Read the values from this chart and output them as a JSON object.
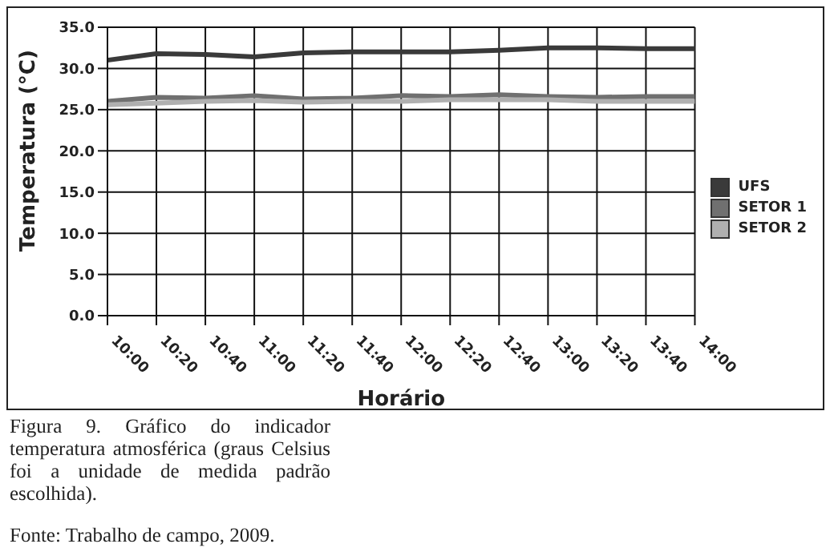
{
  "chart_data": {
    "type": "line",
    "xlabel": "Horário",
    "ylabel": "Temperatura (°C)",
    "categories": [
      "10:00",
      "10:20",
      "10:40",
      "11:00",
      "11:20",
      "11:40",
      "12:00",
      "12:20",
      "12:40",
      "13:00",
      "13:20",
      "13:40",
      "14:00"
    ],
    "series": [
      {
        "name": "UFS",
        "color": "#3a3a3a",
        "values": [
          31.0,
          31.8,
          31.7,
          31.4,
          31.9,
          32.0,
          32.0,
          32.0,
          32.2,
          32.5,
          32.5,
          32.4,
          32.4
        ]
      },
      {
        "name": "SETOR 1",
        "color": "#707070",
        "values": [
          26.0,
          26.5,
          26.4,
          26.7,
          26.3,
          26.4,
          26.7,
          26.6,
          26.8,
          26.6,
          26.5,
          26.6,
          26.6
        ]
      },
      {
        "name": "SETOR 2",
        "color": "#b0b0b0",
        "values": [
          25.6,
          25.8,
          26.0,
          26.1,
          25.9,
          26.0,
          26.0,
          26.2,
          26.2,
          26.2,
          26.0,
          26.0,
          26.0
        ]
      }
    ],
    "ylim": [
      0,
      35
    ],
    "yticks": [
      {
        "value": 0,
        "label": "0.0"
      },
      {
        "value": 5,
        "label": "5.0"
      },
      {
        "value": 10,
        "label": "10.0"
      },
      {
        "value": 15,
        "label": "15.0"
      },
      {
        "value": 20,
        "label": "20.0"
      },
      {
        "value": 25,
        "label": "25.0"
      },
      {
        "value": 30,
        "label": "30.0"
      },
      {
        "value": 35,
        "label": "35.0"
      }
    ],
    "grid": true,
    "legend": "right",
    "marker": "none",
    "line_style": "solid",
    "annotations": [
      "Figura 9. Gráfico do indicador temperatura atmosférica (graus Celsius foi a unidade de medida padrão escolhida).",
      "Fonte: Trabalho de campo, 2009."
    ]
  }
}
